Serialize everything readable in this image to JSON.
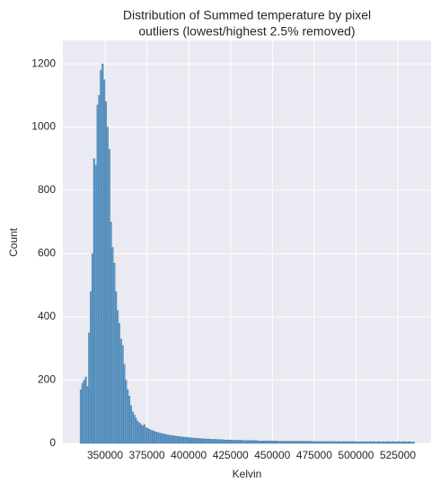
{
  "chart_data": {
    "type": "histogram",
    "title": [
      "Distribution of Summed temperature by pixel",
      "outliers (lowest/highest 2.5% removed)"
    ],
    "x_label": "Kelvin",
    "y_label": "Count",
    "color": "#4c8ec4",
    "grid": true,
    "bins": [
      335000,
      336000,
      337000,
      338000,
      339000,
      340000,
      341000,
      342000,
      343000,
      344000,
      345000,
      346000,
      347000,
      348000,
      349000,
      350000,
      351000,
      352000,
      353000,
      354000,
      355000,
      356000,
      357000,
      358000,
      359000,
      360000,
      361000,
      362000,
      363000,
      364000,
      365000,
      366000,
      367000,
      368000,
      369000,
      370000,
      371000,
      372000,
      373000,
      374000,
      375000,
      376000,
      377000,
      378000,
      379000,
      380000,
      381000,
      382000,
      383000,
      384000,
      385000,
      386000,
      387000,
      388000,
      389000,
      390000,
      391000,
      392000,
      393000,
      394000,
      395000,
      396000,
      397000,
      398000,
      399000,
      400000,
      401000,
      402000,
      403000,
      404000,
      405000,
      406000,
      407000,
      408000,
      409000,
      410000,
      411000,
      412000,
      413000,
      414000,
      415000,
      416000,
      417000,
      418000,
      419000,
      420000,
      421000,
      422000,
      423000,
      424000,
      425000,
      426000,
      427000,
      428000,
      429000,
      430000,
      431000,
      432000,
      433000,
      434000,
      435000,
      436000,
      437000,
      438000,
      439000,
      440000,
      441000,
      442000,
      443000,
      444000,
      445000,
      446000,
      447000,
      448000,
      449000,
      450000,
      451000,
      452000,
      453000,
      454000,
      455000,
      456000,
      457000,
      458000,
      459000,
      460000,
      461000,
      462000,
      463000,
      464000,
      465000,
      466000,
      467000,
      468000,
      469000,
      470000,
      471000,
      472000,
      473000,
      474000,
      475000,
      476000,
      477000,
      478000,
      479000,
      480000,
      481000,
      482000,
      483000,
      484000,
      485000,
      486000,
      487000,
      488000,
      489000,
      490000,
      491000,
      492000,
      493000,
      494000,
      495000,
      496000,
      497000,
      498000,
      499000,
      500000,
      501000,
      502000,
      503000,
      504000,
      505000,
      506000,
      507000,
      508000,
      509000,
      510000,
      511000,
      512000,
      513000,
      514000,
      515000,
      516000,
      517000,
      518000,
      519000,
      520000,
      521000,
      522000,
      523000,
      524000,
      525000,
      526000,
      527000,
      528000,
      529000,
      530000,
      531000,
      532000,
      533000,
      534000,
      535000
    ],
    "values": [
      170,
      190,
      200,
      210,
      180,
      350,
      480,
      600,
      900,
      880,
      1070,
      1100,
      1180,
      1200,
      1150,
      1080,
      1000,
      930,
      700,
      620,
      570,
      480,
      420,
      380,
      330,
      310,
      250,
      200,
      170,
      150,
      120,
      100,
      90,
      80,
      70,
      65,
      60,
      55,
      60,
      50,
      48,
      45,
      42,
      40,
      38,
      36,
      35,
      33,
      32,
      30,
      30,
      28,
      27,
      26,
      25,
      25,
      24,
      23,
      22,
      22,
      21,
      20,
      20,
      19,
      19,
      18,
      18,
      17,
      17,
      16,
      16,
      16,
      15,
      15,
      15,
      14,
      14,
      14,
      13,
      13,
      13,
      13,
      12,
      12,
      12,
      12,
      11,
      11,
      11,
      11,
      11,
      10,
      10,
      10,
      10,
      10,
      10,
      9,
      9,
      9,
      9,
      9,
      9,
      9,
      9,
      9,
      8,
      8,
      8,
      8,
      8,
      8,
      8,
      8,
      8,
      8,
      8,
      8,
      7,
      7,
      7,
      7,
      7,
      7,
      7,
      7,
      7,
      7,
      7,
      7,
      7,
      7,
      7,
      7,
      7,
      7,
      7,
      7,
      6,
      6,
      6,
      6,
      6,
      6,
      6,
      6,
      6,
      6,
      6,
      6,
      6,
      6,
      6,
      5,
      6,
      6,
      5,
      6,
      6,
      5,
      6,
      5,
      6,
      6,
      5,
      6,
      5,
      5,
      6,
      5,
      6,
      5,
      5,
      6,
      5,
      6,
      5,
      5,
      6,
      5,
      5,
      6,
      5,
      5,
      6,
      5,
      5,
      6,
      5,
      5,
      6,
      5,
      5,
      6,
      5,
      5,
      6,
      5,
      4,
      5
    ],
    "xlim": [
      324760,
      544870
    ],
    "xticks": [
      350000,
      375000,
      400000,
      425000,
      450000,
      475000,
      500000,
      525000
    ],
    "ylim": [
      0,
      1274
    ],
    "yticks": [
      0,
      200,
      400,
      600,
      800,
      1000,
      1200
    ]
  }
}
